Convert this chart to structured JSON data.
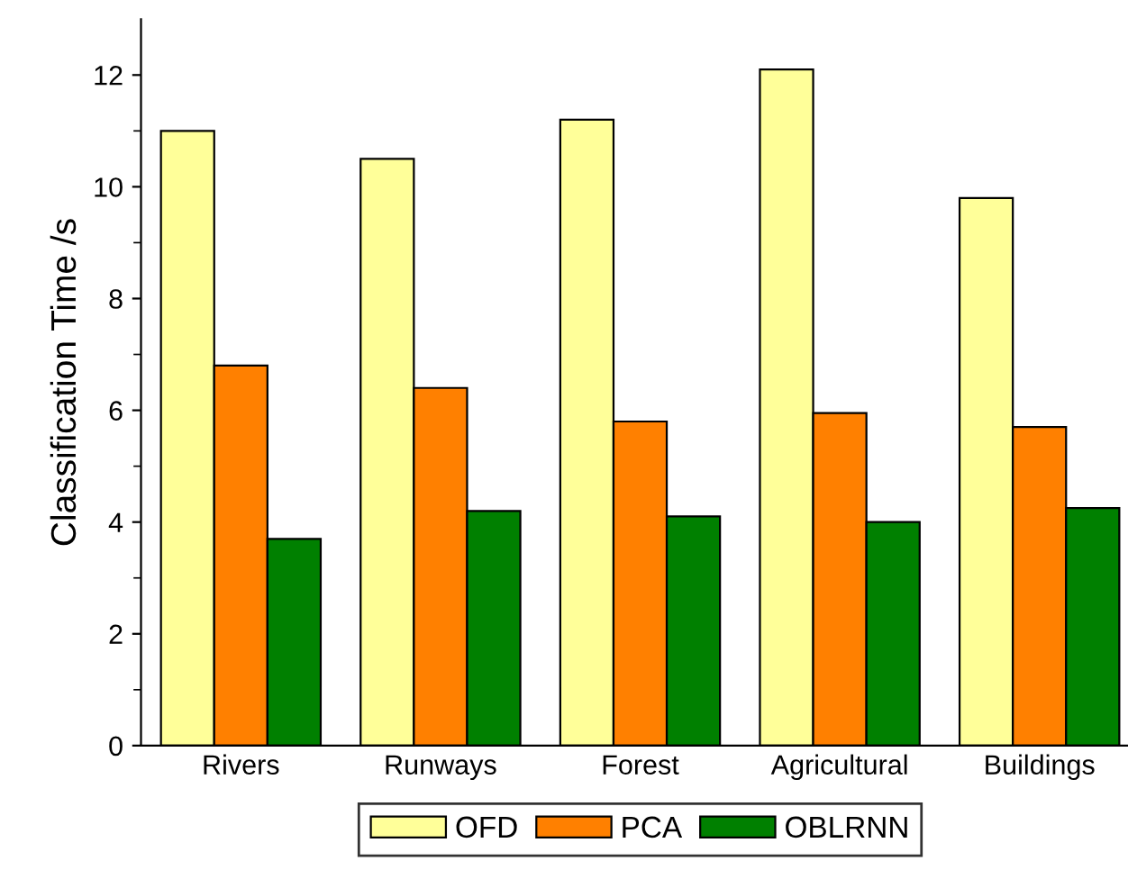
{
  "chart_data": {
    "type": "bar",
    "ylabel": "Classification Time /s",
    "categories": [
      "Rivers",
      "Runways",
      "Forest",
      "Agricultural",
      "Buildings"
    ],
    "series": [
      {
        "name": "OFD",
        "color": "#ffff99",
        "values": [
          11.0,
          10.5,
          11.2,
          12.1,
          9.8
        ]
      },
      {
        "name": "PCA",
        "color": "#ff8000",
        "values": [
          6.8,
          6.4,
          5.8,
          5.95,
          5.7
        ]
      },
      {
        "name": "OBLRNN",
        "color": "#008000",
        "values": [
          3.7,
          4.2,
          4.1,
          4.0,
          4.25
        ]
      }
    ],
    "ylim": [
      0,
      13
    ],
    "yticks": [
      0,
      {
        "value": 1,
        "label": null
      },
      2,
      {
        "value": 3,
        "label": null
      },
      4,
      {
        "value": 5,
        "label": null
      },
      6,
      {
        "value": 7,
        "label": null
      },
      8,
      {
        "value": 9,
        "label": null
      },
      10,
      {
        "value": 11,
        "label": null
      },
      12
    ],
    "grid": false,
    "legend": "bottom"
  }
}
